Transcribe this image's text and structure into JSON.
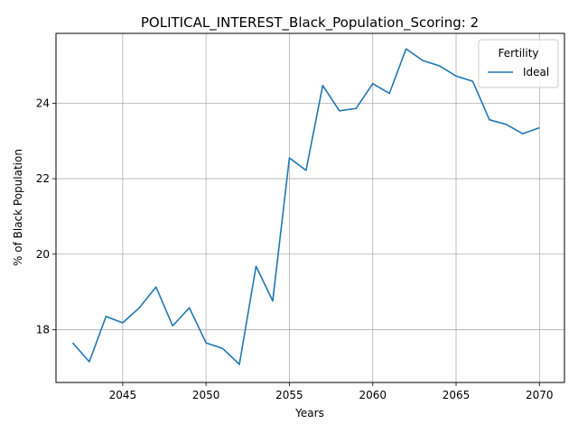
{
  "chart_data": {
    "type": "line",
    "title": "POLITICAL_INTEREST_Black_Population_Scoring: 2",
    "xlabel": "Years",
    "ylabel": "% of Black Population",
    "xlim": [
      2041,
      2071.5
    ],
    "ylim": [
      16.6,
      25.85
    ],
    "xticks": [
      2045,
      2050,
      2055,
      2060,
      2065,
      2070
    ],
    "yticks": [
      18,
      20,
      22,
      24
    ],
    "grid": true,
    "legend": {
      "title": "Fertility",
      "position": "top-right"
    },
    "series": [
      {
        "name": "Ideal",
        "color": "#1f77b4",
        "x": [
          2042,
          2043,
          2044,
          2045,
          2046,
          2047,
          2048,
          2049,
          2050,
          2051,
          2052,
          2053,
          2054,
          2055,
          2056,
          2057,
          2058,
          2059,
          2060,
          2061,
          2062,
          2063,
          2064,
          2065,
          2066,
          2067,
          2068,
          2069,
          2070
        ],
        "y": [
          17.65,
          17.15,
          18.35,
          18.18,
          18.58,
          19.13,
          18.1,
          18.58,
          17.65,
          17.5,
          17.08,
          19.68,
          18.76,
          22.55,
          22.22,
          24.47,
          23.8,
          23.86,
          24.52,
          24.26,
          25.44,
          25.13,
          24.99,
          24.72,
          24.58,
          23.56,
          23.44,
          23.19,
          23.35
        ]
      }
    ]
  }
}
